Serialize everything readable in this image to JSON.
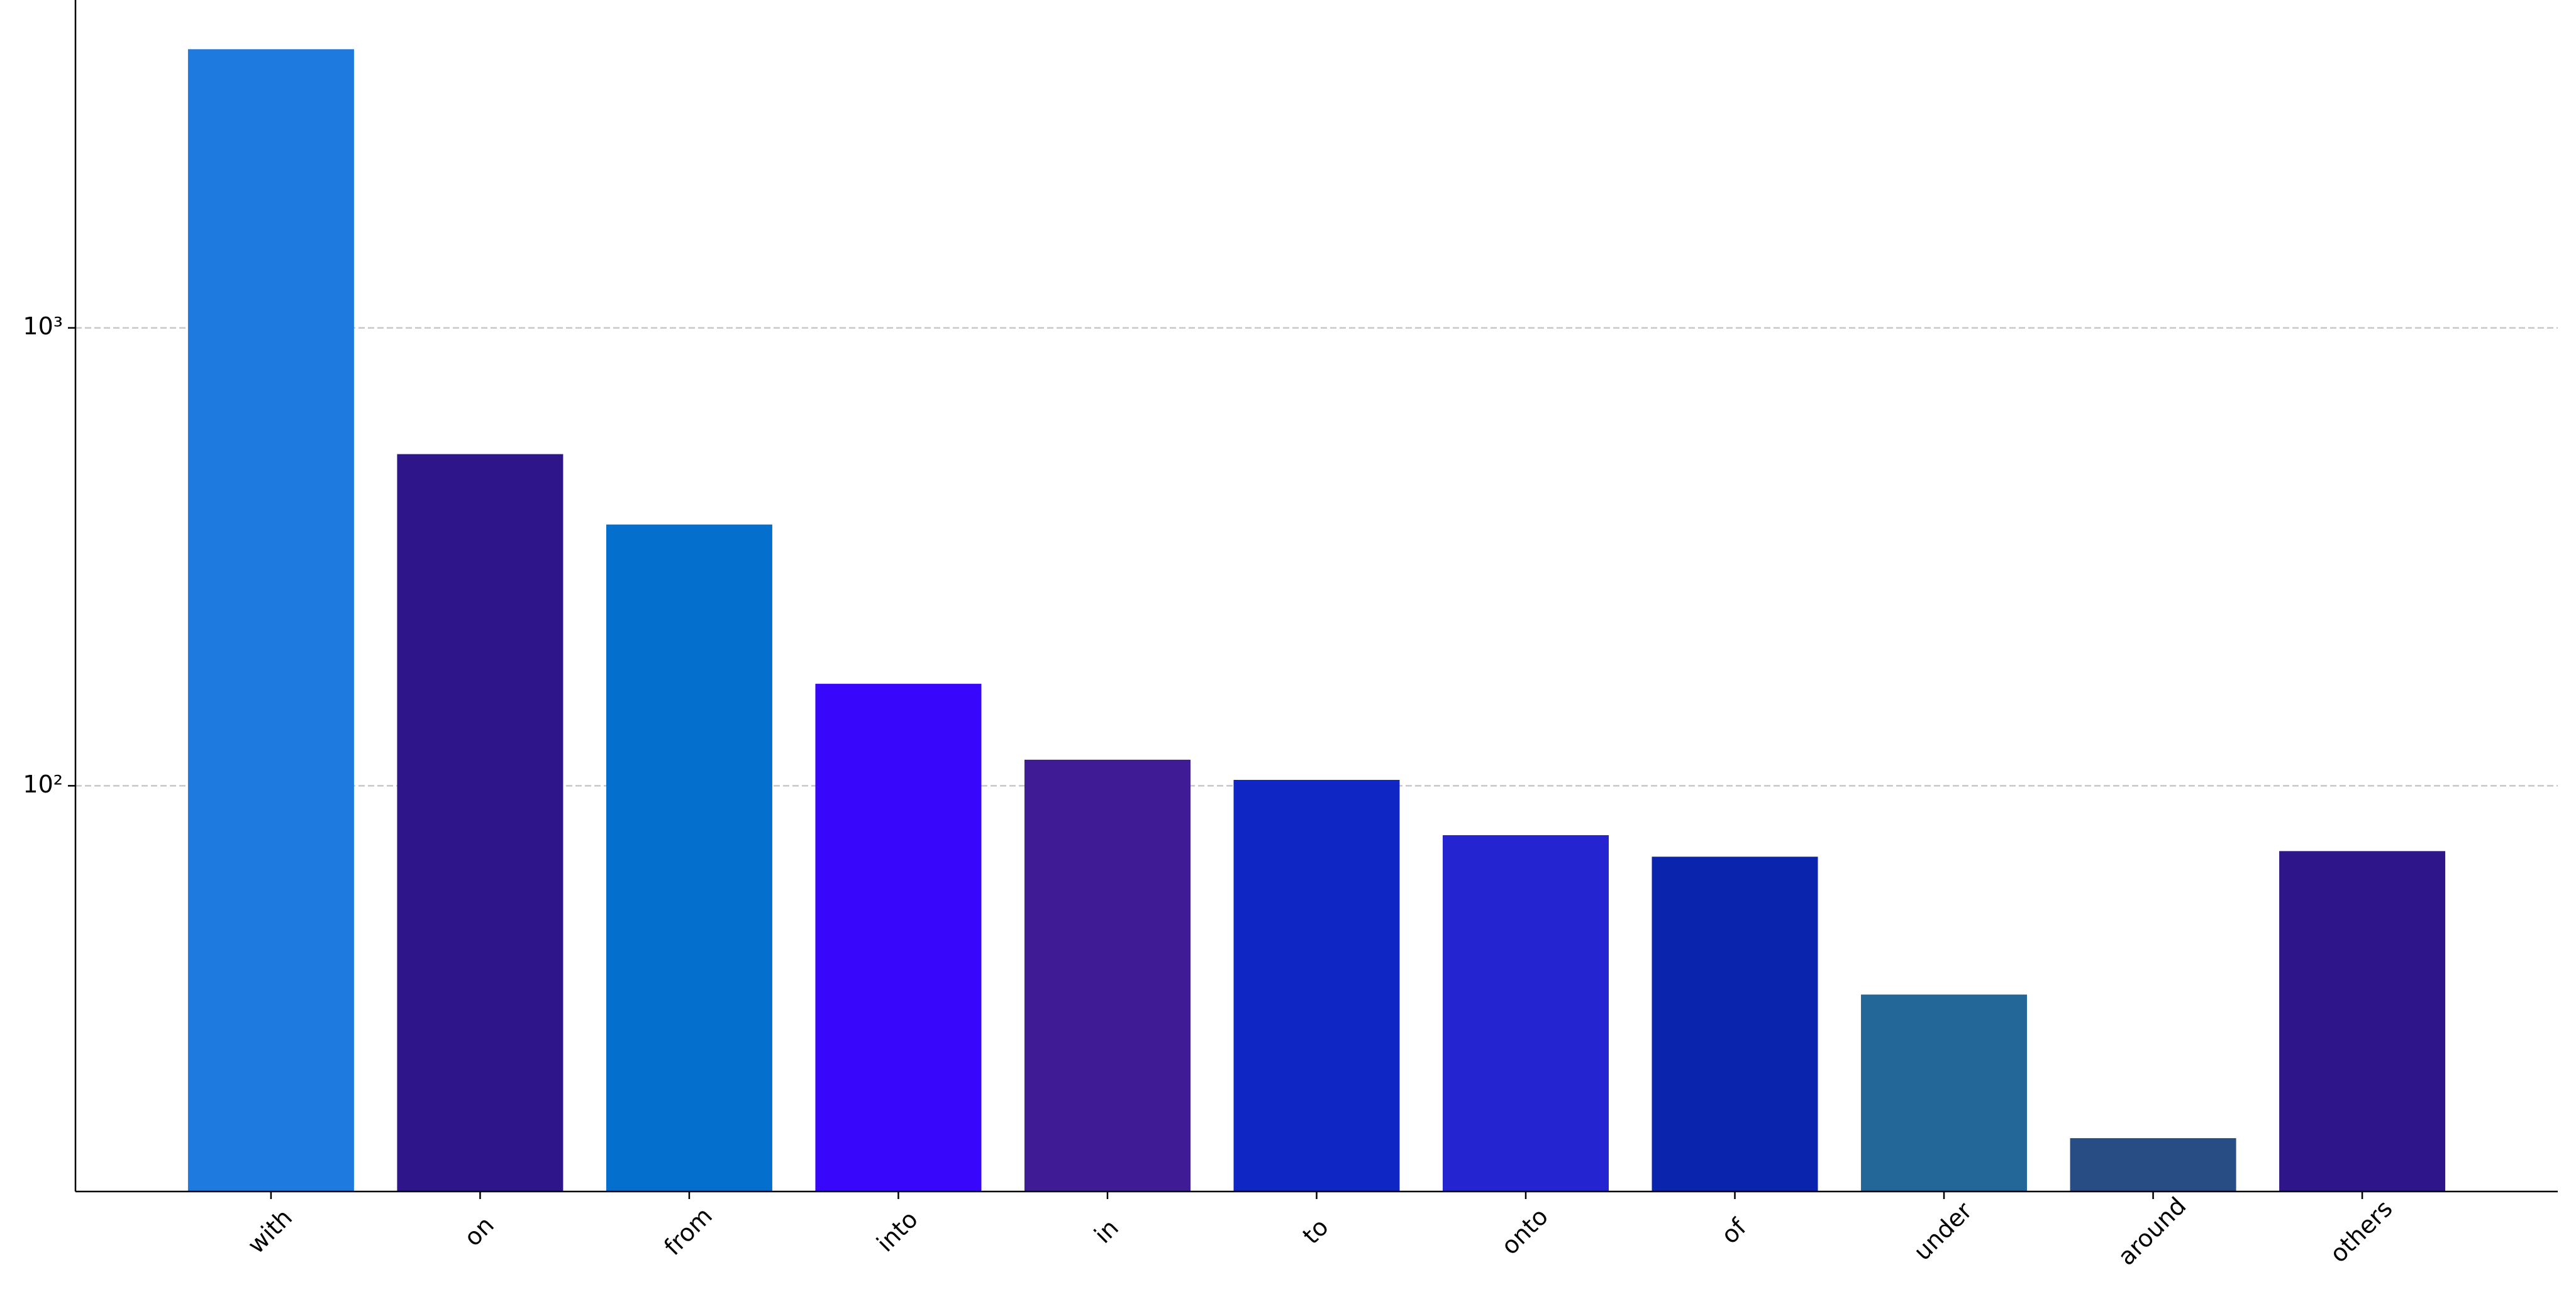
{
  "chart_data": {
    "type": "bar",
    "log_scale": true,
    "grid": true,
    "categories": [
      "with",
      "on",
      "from",
      "into",
      "in",
      "to",
      "onto",
      "of",
      "under",
      "around",
      "others"
    ],
    "values": [
      4060,
      530,
      372,
      167,
      114,
      103,
      78,
      70,
      35,
      17,
      72
    ],
    "colors": [
      "#1f7ae0",
      "#2e168a",
      "#046fcd",
      "#3706fb",
      "#3f1b96",
      "#1026c4",
      "#2425d1",
      "#0b24ae",
      "#236698",
      "#284d85",
      "#2e168a"
    ],
    "ylim": [
      13,
      5200
    ],
    "yticks": [
      {
        "value": 100,
        "label": "10²"
      },
      {
        "value": 1000,
        "label": "10³"
      }
    ]
  }
}
